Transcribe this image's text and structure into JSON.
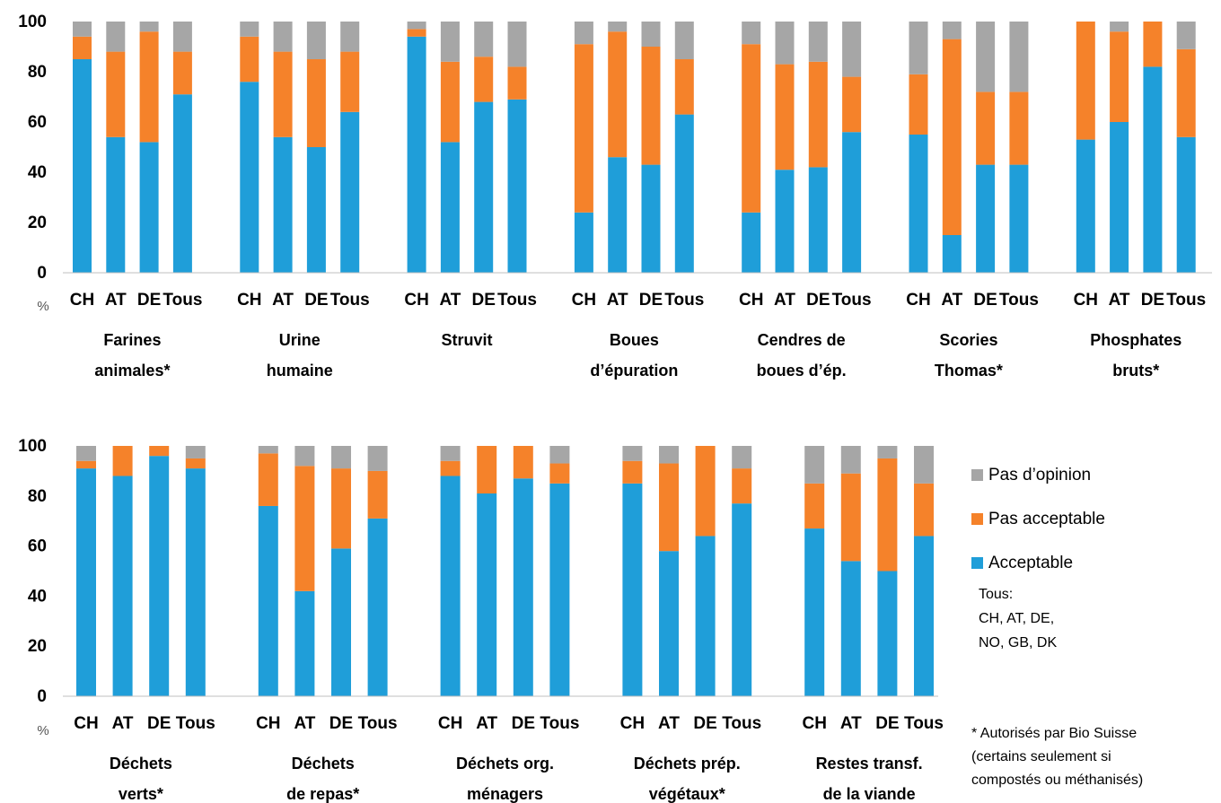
{
  "chart_data": [
    {
      "type": "bar",
      "stacked": true,
      "unit_label": "%",
      "ylim": [
        0,
        100
      ],
      "yticks": [
        "0",
        "20",
        "40",
        "60",
        "80",
        "100"
      ],
      "sub_categories": [
        "CH",
        "AT",
        "DE",
        "Tous"
      ],
      "groups": [
        {
          "label": [
            "Farines",
            "animales*"
          ],
          "acceptable": [
            85,
            54,
            52,
            71
          ],
          "pas_acceptable": [
            9,
            34,
            44,
            17
          ],
          "pas_opinion": [
            6,
            12,
            4,
            12
          ]
        },
        {
          "label": [
            "Urine",
            "humaine"
          ],
          "acceptable": [
            76,
            54,
            50,
            64
          ],
          "pas_acceptable": [
            18,
            34,
            35,
            24
          ],
          "pas_opinion": [
            6,
            12,
            15,
            12
          ]
        },
        {
          "label": [
            "Struvit"
          ],
          "acceptable": [
            94,
            52,
            68,
            69
          ],
          "pas_acceptable": [
            3,
            32,
            18,
            13
          ],
          "pas_opinion": [
            3,
            16,
            14,
            18
          ]
        },
        {
          "label": [
            "Boues",
            "d’épuration"
          ],
          "acceptable": [
            24,
            46,
            43,
            63
          ],
          "pas_acceptable": [
            67,
            50,
            47,
            22
          ],
          "pas_opinion": [
            9,
            4,
            10,
            15
          ]
        },
        {
          "label": [
            "Cendres de",
            "boues d’ép."
          ],
          "acceptable": [
            24,
            41,
            42,
            56
          ],
          "pas_acceptable": [
            67,
            42,
            42,
            22
          ],
          "pas_opinion": [
            9,
            17,
            16,
            22
          ]
        },
        {
          "label": [
            "Scories",
            "Thomas*"
          ],
          "acceptable": [
            55,
            15,
            43,
            43
          ],
          "pas_acceptable": [
            24,
            78,
            29,
            29
          ],
          "pas_opinion": [
            21,
            7,
            28,
            28
          ]
        },
        {
          "label": [
            "Phosphates",
            "bruts*"
          ],
          "acceptable": [
            53,
            60,
            82,
            54
          ],
          "pas_acceptable": [
            47,
            36,
            18,
            35
          ],
          "pas_opinion": [
            0,
            4,
            0,
            11
          ]
        }
      ]
    },
    {
      "type": "bar",
      "stacked": true,
      "unit_label": "%",
      "ylim": [
        0,
        100
      ],
      "yticks": [
        "0",
        "20",
        "40",
        "60",
        "80",
        "100"
      ],
      "sub_categories": [
        "CH",
        "AT",
        "DE",
        "Tous"
      ],
      "groups": [
        {
          "label": [
            "Déchets",
            "verts*"
          ],
          "acceptable": [
            91,
            88,
            96,
            91
          ],
          "pas_acceptable": [
            3,
            12,
            4,
            4
          ],
          "pas_opinion": [
            6,
            0,
            0,
            5
          ]
        },
        {
          "label": [
            "Déchets",
            "de repas*"
          ],
          "acceptable": [
            76,
            42,
            59,
            71
          ],
          "pas_acceptable": [
            21,
            50,
            32,
            19
          ],
          "pas_opinion": [
            3,
            8,
            9,
            10
          ]
        },
        {
          "label": [
            "Déchets org.",
            "ménagers"
          ],
          "acceptable": [
            88,
            81,
            87,
            85
          ],
          "pas_acceptable": [
            6,
            19,
            13,
            8
          ],
          "pas_opinion": [
            6,
            0,
            0,
            7
          ]
        },
        {
          "label": [
            "Déchets prép.",
            "végétaux*"
          ],
          "acceptable": [
            85,
            58,
            64,
            77
          ],
          "pas_acceptable": [
            9,
            35,
            36,
            14
          ],
          "pas_opinion": [
            6,
            7,
            0,
            9
          ]
        },
        {
          "label": [
            "Restes transf.",
            "de la viande"
          ],
          "acceptable": [
            67,
            54,
            50,
            64
          ],
          "pas_acceptable": [
            18,
            35,
            45,
            21
          ],
          "pas_opinion": [
            15,
            11,
            5,
            15
          ]
        }
      ]
    }
  ],
  "series": [
    {
      "key": "pas_opinion",
      "name": "Pas d’opinion",
      "color": "#a6a6a6"
    },
    {
      "key": "pas_acceptable",
      "name": "Pas acceptable",
      "color": "#f5822a"
    },
    {
      "key": "acceptable",
      "name": "Acceptable",
      "color": "#1f9ed9"
    }
  ],
  "notes": {
    "tous": [
      "Tous:",
      "CH, AT, DE,",
      "NO, GB, DK"
    ],
    "footnote": [
      "* Autorisés par Bio Suisse",
      "(certains seulement si",
      "compostés ou méthanisés)"
    ]
  }
}
